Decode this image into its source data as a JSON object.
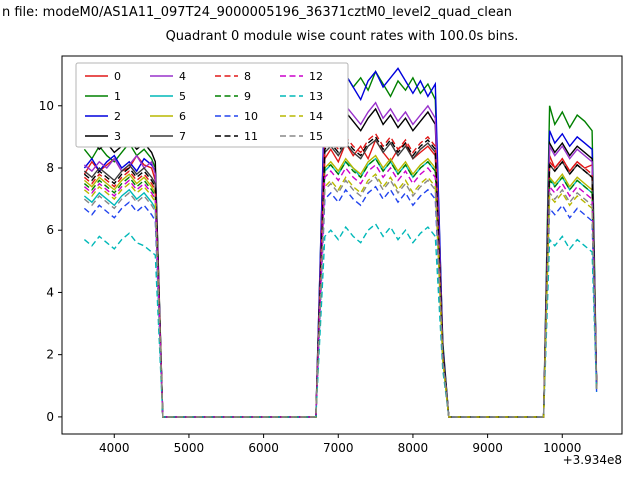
{
  "figure": {
    "suptitle": "n file: modeM0/AS1A11_097T24_9000005196_36371cztM0_level2_quad_clean",
    "title": "Quadrant 0 module wise count rates with 100.0s bins."
  },
  "chart_data": {
    "type": "line",
    "title": "Quadrant 0 module wise count rates with 100.0s bins.",
    "xlabel": "",
    "ylabel": "",
    "x_offset_label": "+3.934e8",
    "xticks": [
      4000,
      5000,
      6000,
      7000,
      8000,
      9000,
      10000
    ],
    "yticks": [
      0,
      2,
      4,
      6,
      8,
      10
    ],
    "xlim": [
      3300,
      10800
    ],
    "ylim": [
      -0.55,
      11.6
    ],
    "legend_position": "upper left",
    "legend_columns": 4,
    "x": [
      3600,
      3700,
      3800,
      3900,
      4000,
      4100,
      4200,
      4300,
      4400,
      4500,
      4550,
      4650,
      5000,
      5500,
      6000,
      6500,
      6700,
      6820,
      6900,
      7000,
      7100,
      7200,
      7300,
      7400,
      7500,
      7600,
      7700,
      7800,
      7900,
      8000,
      8100,
      8200,
      8300,
      8400,
      8480,
      9000,
      9500,
      9750,
      9830,
      9900,
      10000,
      10100,
      10200,
      10300,
      10400,
      10460
    ],
    "series": [
      {
        "name": "0",
        "color": "#e01818",
        "dash": false,
        "values": [
          7.8,
          8.2,
          7.9,
          8.1,
          8.3,
          7.9,
          8.0,
          8.4,
          8.1,
          8.0,
          7.6,
          0,
          0,
          0,
          0,
          0,
          0,
          8.3,
          8.6,
          8.2,
          8.8,
          8.4,
          8.7,
          8.3,
          8.9,
          8.5,
          8.2,
          8.6,
          8.8,
          8.3,
          8.5,
          8.7,
          8.4,
          2.0,
          0,
          0,
          0,
          0,
          8.4,
          8.0,
          8.3,
          7.9,
          8.2,
          8.0,
          8.1,
          1.0
        ]
      },
      {
        "name": "1",
        "color": "#008000",
        "dash": false,
        "values": [
          8.6,
          8.3,
          8.7,
          8.4,
          8.2,
          8.5,
          8.8,
          8.4,
          8.6,
          8.3,
          8.0,
          0,
          0,
          0,
          0,
          0,
          0,
          10.2,
          10.8,
          10.4,
          11.0,
          10.6,
          10.9,
          10.5,
          11.1,
          10.7,
          10.3,
          10.8,
          10.5,
          10.9,
          10.4,
          10.7,
          10.2,
          2.4,
          0,
          0,
          0,
          0,
          10.0,
          9.4,
          9.8,
          9.3,
          9.7,
          9.5,
          9.2,
          1.1
        ]
      },
      {
        "name": "2",
        "color": "#0000dd",
        "dash": false,
        "values": [
          8.0,
          8.3,
          7.9,
          8.2,
          8.4,
          8.0,
          8.2,
          7.9,
          8.3,
          8.1,
          7.9,
          0,
          0,
          0,
          0,
          0,
          0,
          10.4,
          10.9,
          10.5,
          11.0,
          10.6,
          10.2,
          10.8,
          11.1,
          10.6,
          10.9,
          11.2,
          10.8,
          10.4,
          10.8,
          10.3,
          10.7,
          2.3,
          0,
          0,
          0,
          0,
          9.2,
          8.8,
          9.1,
          8.7,
          9.0,
          8.8,
          8.6,
          1.0
        ]
      },
      {
        "name": "3",
        "color": "#000000",
        "dash": false,
        "values": [
          9.6,
          8.9,
          8.6,
          8.8,
          8.5,
          8.7,
          8.9,
          8.6,
          8.8,
          8.5,
          8.2,
          0,
          0,
          0,
          0,
          0,
          0,
          9.4,
          9.7,
          9.3,
          9.8,
          9.5,
          9.2,
          9.6,
          9.9,
          9.4,
          9.7,
          9.3,
          9.6,
          9.2,
          9.5,
          9.8,
          9.4,
          2.2,
          0,
          0,
          0,
          0,
          8.8,
          8.5,
          8.8,
          8.4,
          8.7,
          8.5,
          8.3,
          1.0
        ]
      },
      {
        "name": "4",
        "color": "#9932cc",
        "dash": false,
        "values": [
          8.1,
          7.9,
          8.2,
          8.0,
          8.3,
          7.9,
          8.1,
          8.4,
          8.0,
          8.2,
          7.8,
          0,
          0,
          0,
          0,
          0,
          0,
          9.5,
          9.9,
          9.5,
          10.0,
          9.7,
          9.4,
          9.8,
          10.1,
          9.6,
          9.9,
          9.5,
          9.8,
          9.4,
          9.7,
          10.0,
          9.6,
          2.1,
          0,
          0,
          0,
          0,
          8.7,
          8.4,
          8.7,
          8.3,
          8.6,
          8.4,
          8.2,
          1.0
        ]
      },
      {
        "name": "5",
        "color": "#00b8b8",
        "dash": false,
        "values": [
          7.1,
          6.9,
          7.2,
          7.0,
          6.8,
          7.1,
          7.3,
          7.0,
          7.2,
          6.9,
          6.7,
          0,
          0,
          0,
          0,
          0,
          0,
          7.9,
          8.1,
          7.8,
          8.2,
          8.0,
          7.7,
          8.1,
          8.3,
          7.9,
          8.2,
          7.8,
          8.1,
          7.7,
          8.0,
          8.2,
          7.9,
          1.9,
          0,
          0,
          0,
          0,
          7.7,
          7.4,
          7.7,
          7.3,
          7.6,
          7.4,
          7.2,
          0.9
        ]
      },
      {
        "name": "6",
        "color": "#b8b800",
        "dash": false,
        "values": [
          7.6,
          7.4,
          7.7,
          7.5,
          7.3,
          7.6,
          7.8,
          7.5,
          7.7,
          7.4,
          7.2,
          0,
          0,
          0,
          0,
          0,
          0,
          8.0,
          8.2,
          7.9,
          8.3,
          8.0,
          7.8,
          8.2,
          8.4,
          8.0,
          8.3,
          7.9,
          8.2,
          7.8,
          8.1,
          8.3,
          8.0,
          1.9,
          0,
          0,
          0,
          0,
          7.7,
          7.5,
          7.8,
          7.4,
          7.7,
          7.5,
          7.3,
          0.9
        ]
      },
      {
        "name": "7",
        "color": "#3c3c3c",
        "dash": false,
        "values": [
          7.9,
          7.7,
          8.0,
          7.8,
          7.6,
          7.9,
          8.1,
          7.8,
          8.0,
          7.7,
          7.5,
          0,
          0,
          0,
          0,
          0,
          0,
          8.5,
          8.7,
          8.4,
          8.8,
          8.5,
          8.3,
          8.7,
          8.9,
          8.5,
          8.8,
          8.4,
          8.7,
          8.3,
          8.6,
          8.8,
          8.5,
          2.0,
          0,
          0,
          0,
          0,
          8.1,
          7.9,
          8.2,
          7.8,
          8.1,
          7.9,
          7.7,
          1.0
        ]
      },
      {
        "name": "8",
        "color": "#e01818",
        "dash": true,
        "values": [
          7.7,
          7.5,
          7.8,
          7.6,
          7.4,
          7.7,
          7.9,
          7.6,
          7.8,
          7.5,
          7.3,
          0,
          0,
          0,
          0,
          0,
          0,
          8.7,
          8.9,
          8.6,
          9.0,
          8.7,
          8.5,
          8.9,
          9.1,
          8.7,
          9.0,
          8.6,
          8.9,
          8.5,
          8.8,
          9.0,
          8.7,
          2.0,
          0,
          0,
          0,
          0,
          8.2,
          8.0,
          8.3,
          7.9,
          8.2,
          8.0,
          7.8,
          1.0
        ]
      },
      {
        "name": "9",
        "color": "#008000",
        "dash": true,
        "values": [
          7.5,
          7.3,
          7.6,
          7.4,
          7.2,
          7.5,
          7.7,
          7.4,
          7.6,
          7.3,
          7.1,
          0,
          0,
          0,
          0,
          0,
          0,
          8.0,
          8.1,
          7.8,
          8.2,
          7.9,
          7.7,
          8.1,
          8.3,
          7.9,
          8.2,
          7.8,
          8.1,
          7.7,
          8.0,
          8.2,
          7.9,
          1.9,
          0,
          0,
          0,
          0,
          7.6,
          7.4,
          7.7,
          7.3,
          7.6,
          7.4,
          7.2,
          0.9
        ]
      },
      {
        "name": "10",
        "color": "#2244ee",
        "dash": true,
        "values": [
          6.7,
          6.5,
          6.8,
          6.6,
          6.4,
          6.7,
          6.9,
          6.6,
          6.8,
          6.5,
          6.3,
          0,
          0,
          0,
          0,
          0,
          0,
          7.0,
          7.2,
          6.9,
          7.3,
          7.0,
          6.8,
          7.2,
          7.4,
          7.0,
          7.3,
          6.9,
          7.2,
          6.8,
          7.1,
          7.3,
          7.0,
          1.7,
          0,
          0,
          0,
          0,
          6.7,
          6.5,
          6.8,
          6.4,
          6.7,
          6.5,
          6.3,
          0.8
        ]
      },
      {
        "name": "11",
        "color": "#000000",
        "dash": true,
        "values": [
          7.8,
          7.6,
          7.9,
          7.7,
          7.5,
          7.8,
          8.0,
          7.7,
          7.9,
          7.6,
          7.4,
          0,
          0,
          0,
          0,
          0,
          0,
          8.6,
          8.8,
          8.5,
          8.9,
          8.6,
          8.4,
          8.8,
          9.0,
          8.6,
          8.9,
          8.5,
          8.8,
          8.4,
          8.7,
          8.9,
          8.6,
          2.0,
          0,
          0,
          0,
          0,
          8.1,
          7.9,
          8.2,
          7.8,
          8.1,
          7.9,
          7.7,
          1.0
        ]
      },
      {
        "name": "12",
        "color": "#cc00cc",
        "dash": true,
        "values": [
          7.4,
          7.2,
          7.5,
          7.3,
          7.1,
          7.4,
          7.6,
          7.3,
          7.5,
          7.2,
          7.0,
          0,
          0,
          0,
          0,
          0,
          0,
          7.7,
          7.9,
          7.6,
          8.0,
          7.7,
          7.5,
          7.9,
          8.1,
          7.7,
          8.0,
          7.6,
          7.9,
          7.5,
          7.8,
          8.0,
          7.7,
          1.8,
          0,
          0,
          0,
          0,
          7.4,
          7.2,
          7.5,
          7.1,
          7.4,
          7.2,
          7.0,
          0.9
        ]
      },
      {
        "name": "13",
        "color": "#00b8b8",
        "dash": true,
        "values": [
          5.7,
          5.5,
          5.8,
          5.6,
          5.4,
          5.7,
          5.9,
          5.6,
          5.5,
          5.3,
          5.2,
          0,
          0,
          0,
          0,
          0,
          0,
          5.8,
          6.0,
          5.7,
          6.1,
          5.8,
          5.6,
          6.0,
          6.2,
          5.8,
          6.1,
          5.7,
          6.0,
          5.6,
          5.9,
          6.1,
          5.8,
          1.5,
          0,
          0,
          0,
          0,
          5.7,
          5.5,
          5.8,
          5.4,
          5.7,
          5.5,
          5.3,
          0.8
        ]
      },
      {
        "name": "14",
        "color": "#b8b800",
        "dash": true,
        "values": [
          7.3,
          7.1,
          7.4,
          7.2,
          7.0,
          7.3,
          7.5,
          7.2,
          7.4,
          7.1,
          6.9,
          0,
          0,
          0,
          0,
          0,
          0,
          7.4,
          7.6,
          7.3,
          7.7,
          7.4,
          7.2,
          7.6,
          7.8,
          7.4,
          7.7,
          7.3,
          7.6,
          7.2,
          7.5,
          7.7,
          7.4,
          1.8,
          0,
          0,
          0,
          0,
          7.1,
          6.9,
          7.2,
          6.8,
          7.1,
          6.9,
          6.7,
          0.9
        ]
      },
      {
        "name": "15",
        "color": "#888888",
        "dash": true,
        "values": [
          7.0,
          6.8,
          7.1,
          6.9,
          6.7,
          7.0,
          7.2,
          6.9,
          7.1,
          6.8,
          6.6,
          0,
          0,
          0,
          0,
          0,
          0,
          7.3,
          7.5,
          7.2,
          7.6,
          7.3,
          7.1,
          7.5,
          7.7,
          7.3,
          7.6,
          7.2,
          7.5,
          7.1,
          7.4,
          7.6,
          7.3,
          1.8,
          0,
          0,
          0,
          0,
          7.2,
          7.0,
          7.3,
          6.9,
          7.2,
          7.0,
          6.8,
          0.9
        ]
      }
    ]
  }
}
